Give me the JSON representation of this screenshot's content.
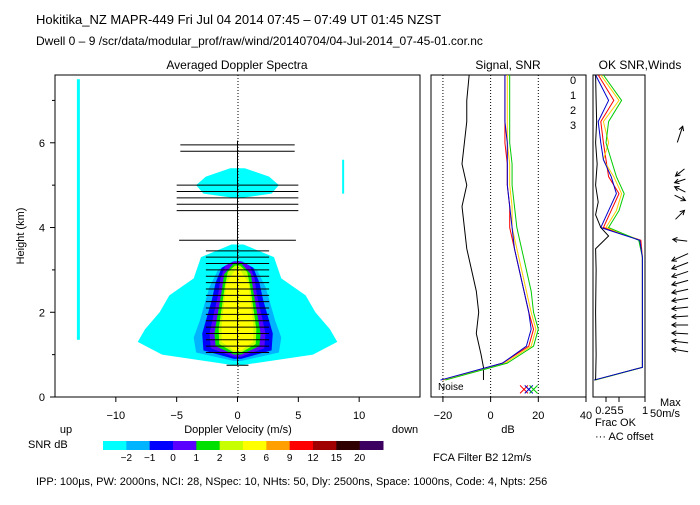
{
  "header": {
    "line1": "Hokitika_NZ   MAPR-449   Fri Jul 04 2014 07:45 – 07:49 UT 01:45 NZST",
    "line2": "Dwell   0  –   9    /scr/data/modular_prof/raw/wind/20140704/04-Jul-2014_07-45-01.cor.nc"
  },
  "footer": {
    "params": "IPP: 100µs,  PW: 2000ns,  NCI:  28,  NSpec: 10, NHts: 50,  Dly: 2500ns,  Space: 1000ns,  Code: 4,  Npts: 256",
    "fca": "FCA Filter B2 12m/s"
  },
  "colorbar": {
    "label": "SNR dB",
    "ticks": [
      "−2",
      "−1",
      "0",
      "1",
      "2",
      "3",
      "6",
      "9",
      "12",
      "15",
      "20"
    ],
    "colors": [
      "#00ffff",
      "#00b4ff",
      "#0000ff",
      "#5a00ff",
      "#00e000",
      "#c8ff00",
      "#ffff00",
      "#ffa000",
      "#ff0000",
      "#a00000",
      "#300000",
      "#3c0060"
    ]
  },
  "chart_data": [
    {
      "type": "heatmap",
      "title": "Averaged Doppler Spectra",
      "xlabel": "Doppler Velocity (m/s)",
      "ylabel": "Height (km)",
      "xlim": [
        -15,
        15
      ],
      "ylim": [
        0,
        7.6
      ],
      "x_ticks": [
        -10,
        -5,
        0,
        5,
        10
      ],
      "x_tick_labels": [
        "−10",
        "−5",
        "0",
        "5",
        "10"
      ],
      "y_ticks": [
        0,
        2,
        4,
        6
      ],
      "axis_side_labels": {
        "left": "up",
        "right": "down"
      },
      "bar_heights_km": [
        0.75,
        1.05,
        1.2,
        1.35,
        1.5,
        1.65,
        1.8,
        1.95,
        2.1,
        2.25,
        2.4,
        2.55,
        2.7,
        2.85,
        3.0,
        3.15,
        3.3,
        3.45,
        3.7,
        4.4,
        4.55,
        4.7,
        4.85,
        5.0,
        5.8,
        5.95
      ],
      "bar_halfwidths": [
        0.9,
        2.6,
        2.6,
        2.6,
        2.6,
        2.6,
        2.6,
        2.6,
        2.6,
        2.6,
        2.6,
        2.6,
        2.6,
        2.6,
        2.6,
        2.6,
        2.6,
        2.6,
        4.8,
        5.0,
        5.0,
        5.0,
        5.0,
        5.0,
        4.7,
        4.7
      ]
    },
    {
      "type": "line",
      "title": "Signal, SNR",
      "xlabel": "dB",
      "xlim": [
        -25,
        40
      ],
      "ylim": [
        0,
        7.6
      ],
      "x_ticks": [
        -20,
        0,
        20,
        40
      ],
      "x_tick_labels": [
        "−20",
        "0",
        "20",
        "40"
      ],
      "annotation": "Noise",
      "series": [
        {
          "name": "noise",
          "color": "#000000",
          "y": [
            0.4,
            0.7,
            1,
            1.5,
            2,
            2.5,
            3,
            3.5,
            4,
            4.5,
            5,
            5.5,
            6,
            6.5,
            7,
            7.6
          ],
          "x": [
            -3,
            -3,
            -4,
            -6,
            -5,
            -6,
            -8,
            -10,
            -11,
            -12,
            -10,
            -12,
            -11,
            -10,
            -10,
            -9
          ]
        },
        {
          "name": "0",
          "color": "#ff0000",
          "y": [
            0.4,
            0.8,
            1.2,
            1.6,
            2,
            2.5,
            3,
            3.5,
            4,
            4.5,
            5,
            5.5,
            6,
            6.5,
            7,
            7.6
          ],
          "x": [
            -20,
            5,
            16,
            18,
            16,
            14,
            12,
            10,
            8,
            8,
            7,
            7,
            6,
            6,
            6,
            6
          ]
        },
        {
          "name": "1",
          "color": "#ffcc00",
          "y": [
            0.4,
            0.8,
            1.2,
            1.6,
            2,
            2.5,
            3,
            3.5,
            4,
            4.5,
            5,
            5.5,
            6,
            6.5,
            7,
            7.6
          ],
          "x": [
            -20,
            6,
            17,
            19,
            17,
            15,
            13,
            11,
            9,
            9,
            8,
            8,
            7,
            7,
            7,
            7
          ]
        },
        {
          "name": "2",
          "color": "#00cc00",
          "y": [
            0.4,
            0.8,
            1.2,
            1.6,
            2,
            2.5,
            3,
            3.5,
            4,
            4.5,
            5,
            5.5,
            6,
            6.5,
            7,
            7.6
          ],
          "x": [
            -19,
            7,
            18,
            20,
            18,
            17,
            15,
            13,
            11,
            10,
            9,
            9,
            8,
            8,
            8,
            8
          ]
        },
        {
          "name": "3",
          "color": "#0000cc",
          "y": [
            0.4,
            0.8,
            1.2,
            1.6,
            2,
            2.5,
            3,
            3.5,
            4,
            4.5,
            5,
            5.5,
            6,
            6.5,
            7,
            7.6
          ],
          "x": [
            -21,
            5,
            15,
            17,
            16,
            14,
            12,
            10,
            9,
            8,
            7,
            7,
            7,
            6,
            6,
            6
          ]
        }
      ]
    },
    {
      "type": "line",
      "title": "OK SNR,Winds",
      "xlim": [
        0,
        1
      ],
      "ylim": [
        0,
        7.6
      ],
      "x_ticks": [
        0.25,
        0.5,
        1
      ],
      "x_tick_labels": [
        "0.25",
        ".5",
        "1"
      ],
      "xlabel": "Frac OK",
      "extra_labels": [
        "··· AC offset",
        "Max",
        "50m/s"
      ],
      "series": [
        {
          "name": "0",
          "color": "#ff0000",
          "y": [
            0.4,
            0.7,
            3.3,
            3.7,
            4,
            4.4,
            4.8,
            5.2,
            5.6,
            6,
            6.5,
            7,
            7.6
          ],
          "x": [
            0.03,
            0.95,
            0.95,
            0.92,
            0.2,
            0.35,
            0.5,
            0.3,
            0.25,
            0.2,
            0.15,
            0.4,
            0.1
          ]
        },
        {
          "name": "1",
          "color": "#ffcc00",
          "y": [
            0.4,
            0.7,
            3.3,
            3.7,
            4,
            4.4,
            4.8,
            5.2,
            5.6,
            6,
            6.5,
            7,
            7.6
          ],
          "x": [
            0.05,
            0.95,
            0.95,
            0.9,
            0.25,
            0.45,
            0.55,
            0.4,
            0.2,
            0.3,
            0.2,
            0.5,
            0.15
          ]
        },
        {
          "name": "2",
          "color": "#00cc00",
          "y": [
            0.4,
            0.7,
            3.3,
            3.7,
            4,
            4.4,
            4.8,
            5.2,
            5.6,
            6,
            6.5,
            7,
            7.6
          ],
          "x": [
            0.04,
            0.95,
            0.95,
            0.88,
            0.3,
            0.5,
            0.6,
            0.45,
            0.35,
            0.25,
            0.3,
            0.55,
            0.2
          ]
        },
        {
          "name": "3",
          "color": "#0000cc",
          "y": [
            0.4,
            0.7,
            3.3,
            3.7,
            4,
            4.4,
            4.8,
            5.2,
            5.6,
            6,
            6.5,
            7,
            7.6
          ],
          "x": [
            0.02,
            0.95,
            0.95,
            0.9,
            0.15,
            0.3,
            0.45,
            0.35,
            0.2,
            0.15,
            0.1,
            0.3,
            0.05
          ]
        },
        {
          "name": "ac-offset",
          "color": "#000000",
          "y": [
            0.4,
            1,
            2,
            3,
            3.5,
            3.8,
            4,
            4.3,
            4.6,
            5,
            5.5,
            6,
            6.5,
            7,
            7.6
          ],
          "x": [
            0.05,
            0.06,
            0.05,
            0.06,
            0.05,
            0.3,
            0.15,
            0.05,
            0.1,
            0.05,
            0.08,
            0.05,
            0.07,
            0.06,
            0.05
          ]
        }
      ],
      "wind_barbs": [
        {
          "h": 6.2,
          "u": 0.3,
          "v": 0.9
        },
        {
          "h": 5.3,
          "u": -0.5,
          "v": -0.4
        },
        {
          "h": 5.1,
          "u": -0.6,
          "v": -0.2
        },
        {
          "h": 4.9,
          "u": -0.6,
          "v": 0.3
        },
        {
          "h": 4.7,
          "u": 0.6,
          "v": -0.3
        },
        {
          "h": 4.3,
          "u": 0.5,
          "v": 0.5
        },
        {
          "h": 3.7,
          "u": -0.8,
          "v": 0.1
        },
        {
          "h": 3.3,
          "u": -0.9,
          "v": -0.4
        },
        {
          "h": 3.1,
          "u": -0.9,
          "v": -0.35
        },
        {
          "h": 2.9,
          "u": -0.9,
          "v": -0.3
        },
        {
          "h": 2.7,
          "u": -0.9,
          "v": -0.25
        },
        {
          "h": 2.5,
          "u": -0.9,
          "v": -0.2
        },
        {
          "h": 2.3,
          "u": -0.9,
          "v": -0.15
        },
        {
          "h": 2.1,
          "u": -0.9,
          "v": -0.1
        },
        {
          "h": 1.9,
          "u": -0.9,
          "v": -0.05
        },
        {
          "h": 1.7,
          "u": -0.9,
          "v": 0.0
        },
        {
          "h": 1.5,
          "u": -0.9,
          "v": 0.05
        },
        {
          "h": 1.3,
          "u": -0.9,
          "v": 0.1
        },
        {
          "h": 1.1,
          "u": -0.9,
          "v": 0.15
        }
      ]
    }
  ]
}
